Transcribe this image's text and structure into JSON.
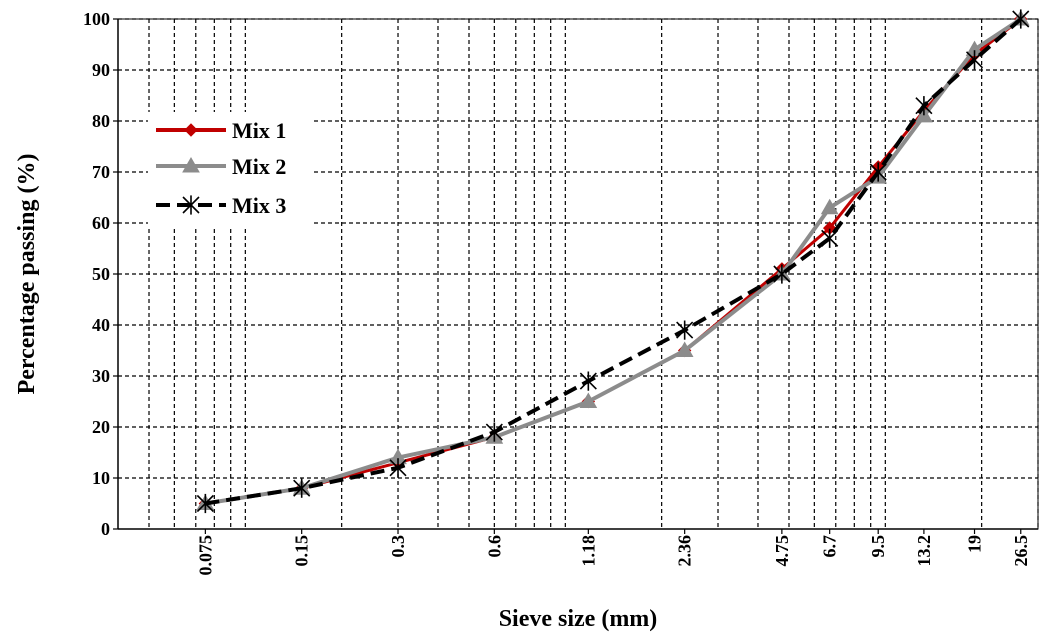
{
  "chart_data": {
    "type": "line",
    "xscale": "log",
    "xlabel": "Sieve size (mm)",
    "ylabel": "Percentage passing (%)",
    "ylim": [
      0,
      100
    ],
    "yticks": [
      0,
      10,
      20,
      30,
      40,
      50,
      60,
      70,
      80,
      90,
      100
    ],
    "x": [
      0.075,
      0.15,
      0.3,
      0.6,
      1.18,
      2.36,
      4.75,
      6.7,
      9.5,
      13.2,
      19,
      26.5
    ],
    "xtick_labels": [
      "0.075",
      "0.15",
      "0.3",
      "0.6",
      "1.18",
      "2.36",
      "4.75",
      "6.7",
      "9.5",
      "13.2",
      "19",
      "26.5"
    ],
    "grid": true,
    "legend_position": "left",
    "series": [
      {
        "name": "Mix 1",
        "color": "#c00000",
        "marker": "diamond",
        "dash": "solid",
        "values": [
          5,
          8,
          13,
          18,
          25,
          35,
          51,
          59,
          71,
          82,
          93,
          100
        ]
      },
      {
        "name": "Mix 2",
        "color": "#8c8c8c",
        "marker": "triangle",
        "dash": "solid",
        "values": [
          5,
          8,
          14,
          18,
          25,
          35,
          50,
          63,
          69,
          81,
          94,
          100
        ]
      },
      {
        "name": "Mix 3",
        "color": "#000000",
        "marker": "star",
        "dash": "dashed",
        "values": [
          5,
          8,
          12,
          19,
          29,
          39,
          50,
          57,
          70,
          83,
          92,
          100
        ]
      }
    ]
  }
}
